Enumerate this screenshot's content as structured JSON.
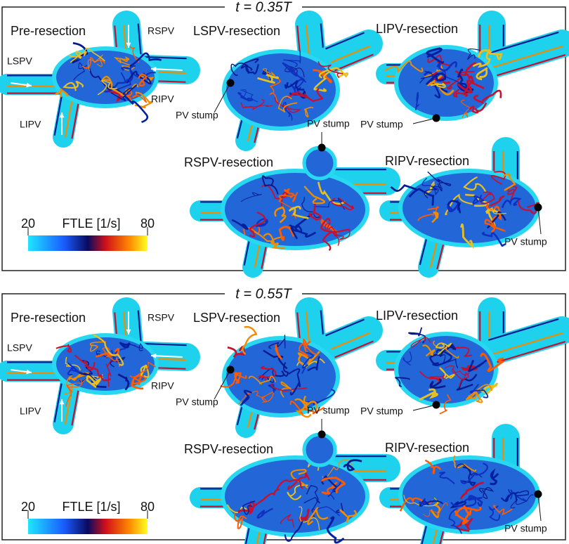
{
  "panels": [
    {
      "title": "t = 0.35T",
      "images": [
        {
          "label": "Pre-resection",
          "vessels": [
            "LSPV",
            "RSPV",
            "RIPV",
            "LIPV"
          ]
        },
        {
          "label": "LSPV-resection",
          "annotation": "PV stump"
        },
        {
          "label": "LIPV-resection",
          "annotation": "PV stump"
        },
        {
          "label": "RSPV-resection",
          "annotation": "PV stump"
        },
        {
          "label": "RIPV-resection",
          "annotation": "PV stump"
        }
      ],
      "colorbar": {
        "min": 20,
        "max": 80,
        "label": "FTLE [1/s]"
      }
    },
    {
      "title": "t = 0.55T",
      "images": [
        {
          "label": "Pre-resection",
          "vessels": [
            "LSPV",
            "RSPV",
            "RIPV",
            "LIPV"
          ]
        },
        {
          "label": "LSPV-resection",
          "annotation": "PV stump"
        },
        {
          "label": "LIPV-resection",
          "annotation": "PV stump"
        },
        {
          "label": "RSPV-resection",
          "annotation": "PV stump"
        },
        {
          "label": "RIPV-resection",
          "annotation": "PV stump"
        }
      ],
      "colorbar": {
        "min": 20,
        "max": 80,
        "label": "FTLE [1/s]"
      }
    }
  ]
}
